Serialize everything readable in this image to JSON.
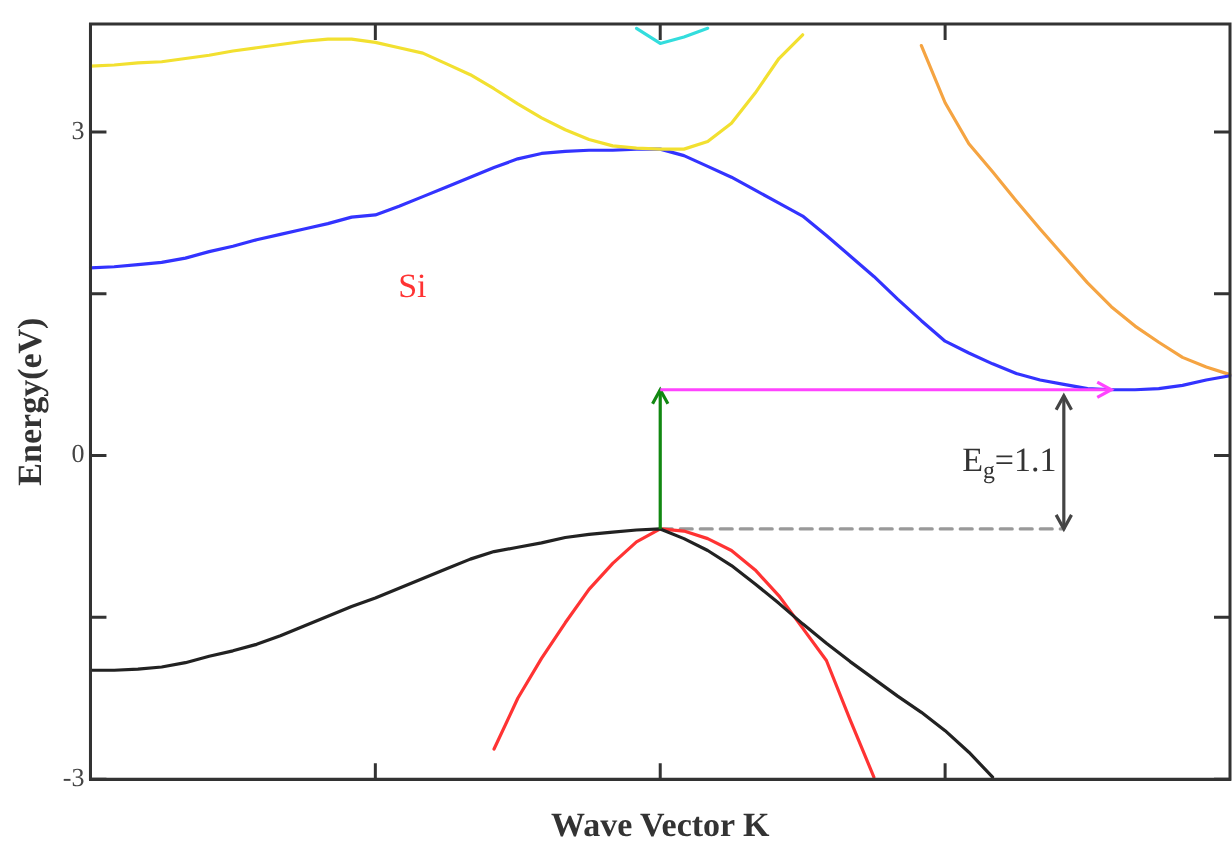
{
  "chart_data": {
    "type": "line",
    "xlabel": "Wave Vector K",
    "ylabel": "Energy(eV)",
    "categories": [
      null,
      null,
      null,
      null,
      null,
      null,
      null,
      null,
      null,
      null,
      null,
      null,
      null,
      null,
      null,
      null,
      null,
      null,
      null,
      null,
      null,
      null,
      null,
      null,
      null,
      null,
      null,
      null,
      null,
      null,
      null,
      null,
      null,
      null,
      null,
      null,
      null,
      null,
      null,
      null,
      null,
      null,
      null,
      null,
      null,
      null,
      null,
      null,
      null
    ],
    "ylim": [
      -3,
      4
    ],
    "yticks": [
      -3,
      {
        "value": -1.5,
        "label": null
      },
      0,
      {
        "value": 1.5,
        "label": null
      },
      3
    ],
    "tick_labels": "y",
    "grid": false,
    "legend": false,
    "marker": "none",
    "line_style": "solid",
    "annotations": [
      "Si",
      "E$_{g}$=1.1"
    ],
    "series": [
      {
        "color": "#f2e030",
        "values": [
          3.61,
          3.62,
          3.64,
          3.65,
          3.68,
          3.71,
          3.75,
          3.78,
          3.81,
          3.84,
          3.86,
          3.86,
          3.83,
          3.78,
          3.73,
          3.63,
          3.53,
          3.4,
          3.26,
          3.13,
          3.02,
          2.93,
          2.87,
          2.85,
          2.84,
          2.84,
          2.91,
          3.08,
          3.36,
          3.68,
          3.9,
          null,
          null,
          null,
          null,
          null,
          null,
          null,
          null,
          null,
          null,
          null,
          null,
          null,
          null,
          null,
          null,
          null,
          null
        ]
      },
      {
        "color": "#3333ff",
        "values": [
          1.74,
          1.75,
          1.77,
          1.79,
          1.83,
          1.89,
          1.94,
          2.0,
          2.05,
          2.1,
          2.15,
          2.21,
          2.23,
          2.31,
          2.4,
          2.49,
          2.58,
          2.67,
          2.75,
          2.8,
          2.82,
          2.83,
          2.83,
          2.84,
          2.84,
          2.78,
          2.68,
          2.58,
          2.46,
          2.34,
          2.22,
          2.04,
          1.85,
          1.66,
          1.45,
          1.25,
          1.06,
          0.95,
          0.85,
          0.76,
          0.7,
          0.66,
          0.62,
          0.61,
          0.61,
          0.62,
          0.65,
          0.7,
          0.74
        ]
      },
      {
        "color": "#33dddd",
        "values": [
          null,
          null,
          null,
          null,
          null,
          null,
          null,
          null,
          null,
          null,
          null,
          null,
          null,
          null,
          null,
          null,
          null,
          null,
          null,
          null,
          null,
          null,
          null,
          3.96,
          3.82,
          3.88,
          3.96,
          null,
          null,
          null,
          null,
          null,
          null,
          null,
          null,
          null,
          null,
          null,
          null,
          null,
          null,
          null,
          null,
          null,
          null,
          null,
          null,
          null,
          null
        ]
      },
      {
        "color": "#f5a442",
        "values": [
          null,
          null,
          null,
          null,
          null,
          null,
          null,
          null,
          null,
          null,
          null,
          null,
          null,
          null,
          null,
          null,
          null,
          null,
          null,
          null,
          null,
          null,
          null,
          null,
          null,
          null,
          null,
          null,
          null,
          null,
          null,
          null,
          null,
          null,
          null,
          3.8,
          3.27,
          2.89,
          2.63,
          2.36,
          2.1,
          1.85,
          1.6,
          1.38,
          1.2,
          1.05,
          0.91,
          0.82,
          0.75
        ]
      },
      {
        "color": "#222222",
        "values": [
          -1.99,
          -1.99,
          -1.98,
          -1.96,
          -1.92,
          -1.86,
          -1.81,
          -1.75,
          -1.67,
          -1.58,
          -1.49,
          -1.4,
          -1.32,
          -1.23,
          -1.14,
          -1.05,
          -0.96,
          -0.89,
          -0.85,
          -0.81,
          -0.76,
          -0.73,
          -0.71,
          -0.69,
          -0.68,
          -0.77,
          -0.88,
          -1.02,
          -1.19,
          -1.37,
          -1.56,
          -1.74,
          -1.91,
          -2.07,
          -2.23,
          -2.38,
          -2.55,
          -2.75,
          -2.98,
          null,
          null,
          null,
          null,
          null,
          null,
          null,
          null,
          null,
          null
        ]
      },
      {
        "color": "#ff3333",
        "values": [
          null,
          null,
          null,
          null,
          null,
          null,
          null,
          null,
          null,
          null,
          null,
          null,
          null,
          null,
          null,
          null,
          null,
          -2.72,
          -2.25,
          -1.88,
          -1.55,
          -1.24,
          -1.0,
          -0.8,
          -0.68,
          -0.7,
          -0.77,
          -0.88,
          -1.06,
          -1.3,
          -1.6,
          -1.9,
          -2.45,
          -2.98,
          null,
          null,
          null,
          null,
          null,
          null,
          null,
          null,
          null,
          null,
          null,
          null,
          null,
          null,
          null
        ]
      },
      {
        "color": "#999999",
        "line_style": "dashed",
        "values": [
          null,
          null,
          null,
          null,
          null,
          null,
          null,
          null,
          null,
          null,
          null,
          null,
          null,
          null,
          null,
          null,
          null,
          null,
          null,
          null,
          null,
          null,
          null,
          null,
          -0.68,
          -0.68,
          -0.68,
          -0.68,
          -0.68,
          -0.68,
          -0.68,
          -0.68,
          -0.68,
          -0.68,
          -0.68,
          -0.68,
          -0.68,
          -0.68,
          -0.68,
          -0.68,
          -0.68,
          -0.68,
          null,
          null,
          null,
          null,
          null,
          null,
          null
        ]
      }
    ]
  }
}
